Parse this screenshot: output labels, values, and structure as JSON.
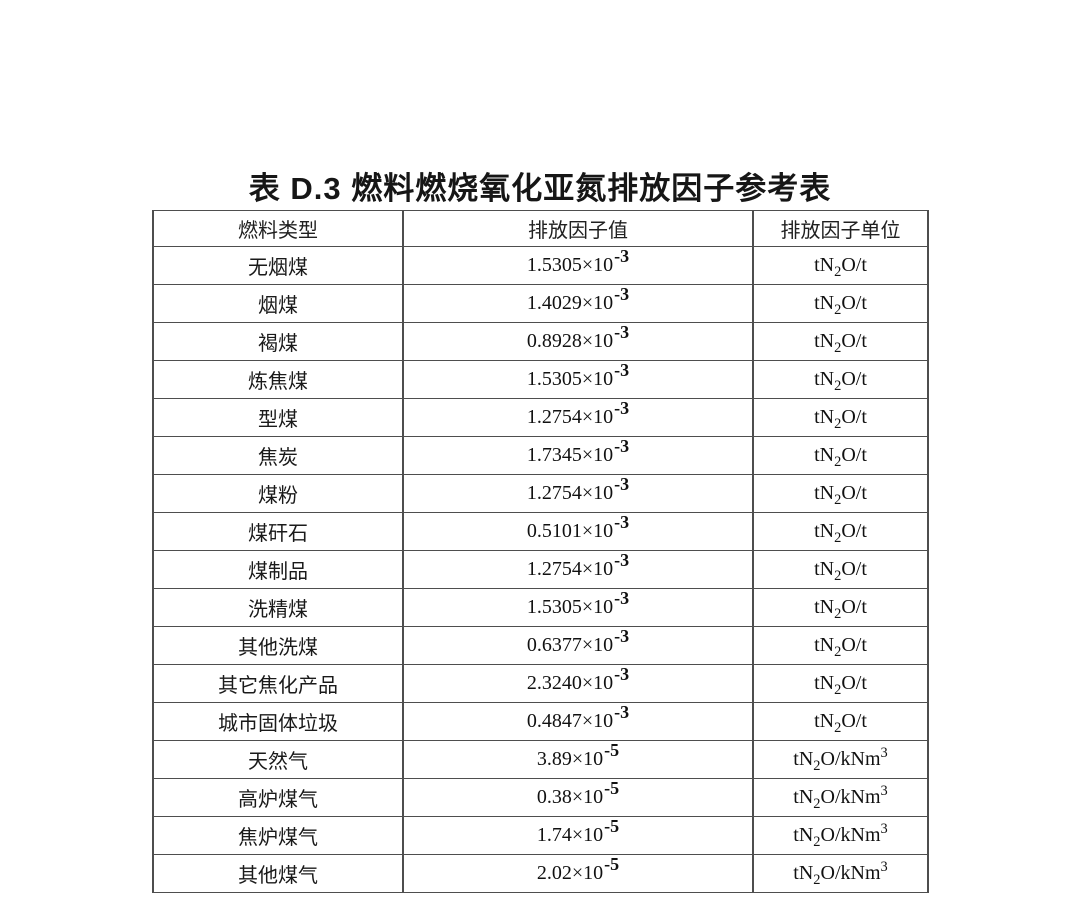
{
  "title": "表 D.3 燃料燃烧氧化亚氮排放因子参考表",
  "table": {
    "headers": [
      "燃料类型",
      "排放因子值",
      "排放因子单位"
    ],
    "rows": [
      {
        "fuel": "无烟煤",
        "value_base": "1.5305×10",
        "value_exp": "-3",
        "unit_pre": "tN",
        "unit_sub": "2",
        "unit_post": "O/t",
        "unit_sup": ""
      },
      {
        "fuel": "烟煤",
        "value_base": "1.4029×10",
        "value_exp": "-3",
        "unit_pre": "tN",
        "unit_sub": "2",
        "unit_post": "O/t",
        "unit_sup": ""
      },
      {
        "fuel": "褐煤",
        "value_base": "0.8928×10",
        "value_exp": "-3",
        "unit_pre": "tN",
        "unit_sub": "2",
        "unit_post": "O/t",
        "unit_sup": ""
      },
      {
        "fuel": "炼焦煤",
        "value_base": "1.5305×10",
        "value_exp": "-3",
        "unit_pre": "tN",
        "unit_sub": "2",
        "unit_post": "O/t",
        "unit_sup": ""
      },
      {
        "fuel": "型煤",
        "value_base": "1.2754×10",
        "value_exp": "-3",
        "unit_pre": "tN",
        "unit_sub": "2",
        "unit_post": "O/t",
        "unit_sup": ""
      },
      {
        "fuel": "焦炭",
        "value_base": "1.7345×10",
        "value_exp": "-3",
        "unit_pre": "tN",
        "unit_sub": "2",
        "unit_post": "O/t",
        "unit_sup": ""
      },
      {
        "fuel": "煤粉",
        "value_base": "1.2754×10",
        "value_exp": "-3",
        "unit_pre": "tN",
        "unit_sub": "2",
        "unit_post": "O/t",
        "unit_sup": ""
      },
      {
        "fuel": "煤矸石",
        "value_base": "0.5101×10",
        "value_exp": "-3",
        "unit_pre": "tN",
        "unit_sub": "2",
        "unit_post": "O/t",
        "unit_sup": ""
      },
      {
        "fuel": "煤制品",
        "value_base": "1.2754×10",
        "value_exp": "-3",
        "unit_pre": "tN",
        "unit_sub": "2",
        "unit_post": "O/t",
        "unit_sup": ""
      },
      {
        "fuel": "洗精煤",
        "value_base": "1.5305×10",
        "value_exp": "-3",
        "unit_pre": "tN",
        "unit_sub": "2",
        "unit_post": "O/t",
        "unit_sup": ""
      },
      {
        "fuel": "其他洗煤",
        "value_base": "0.6377×10",
        "value_exp": "-3",
        "unit_pre": "tN",
        "unit_sub": "2",
        "unit_post": "O/t",
        "unit_sup": ""
      },
      {
        "fuel": "其它焦化产品",
        "value_base": "2.3240×10",
        "value_exp": "-3",
        "unit_pre": "tN",
        "unit_sub": "2",
        "unit_post": "O/t",
        "unit_sup": ""
      },
      {
        "fuel": "城市固体垃圾",
        "value_base": "0.4847×10",
        "value_exp": "-3",
        "unit_pre": "tN",
        "unit_sub": "2",
        "unit_post": "O/t",
        "unit_sup": ""
      },
      {
        "fuel": "天然气",
        "value_base": "3.89×10",
        "value_exp": "-5",
        "unit_pre": "tN",
        "unit_sub": "2",
        "unit_post": "O/kNm",
        "unit_sup": "3"
      },
      {
        "fuel": "高炉煤气",
        "value_base": "0.38×10",
        "value_exp": "-5",
        "unit_pre": "tN",
        "unit_sub": "2",
        "unit_post": "O/kNm",
        "unit_sup": "3"
      },
      {
        "fuel": "焦炉煤气",
        "value_base": "1.74×10",
        "value_exp": "-5",
        "unit_pre": "tN",
        "unit_sub": "2",
        "unit_post": "O/kNm",
        "unit_sup": "3"
      },
      {
        "fuel": "其他煤气",
        "value_base": "2.02×10",
        "value_exp": "-5",
        "unit_pre": "tN",
        "unit_sub": "2",
        "unit_post": "O/kNm",
        "unit_sup": "3"
      }
    ]
  }
}
